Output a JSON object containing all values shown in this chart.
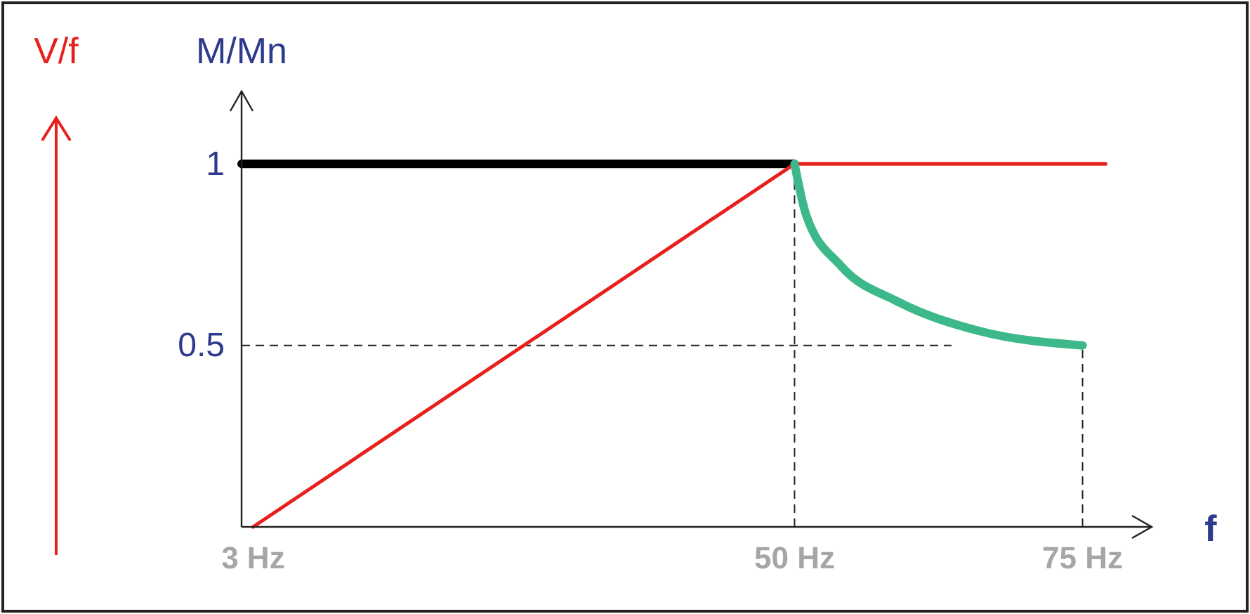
{
  "chart_data": {
    "type": "line",
    "xlabel": "f",
    "ylabel": "M/Mn",
    "annotations": [
      "V/f"
    ],
    "xlim": [
      2,
      81
    ],
    "ylim": [
      0,
      1.2
    ],
    "xticks": [
      {
        "value": 3,
        "label": "3 Hz"
      },
      {
        "value": 50,
        "label": "50 Hz"
      },
      {
        "value": 75,
        "label": "75 Hz"
      }
    ],
    "yticks": [
      0.5,
      1
    ],
    "series": [
      {
        "color": "#000000",
        "x": [
          2,
          50
        ],
        "values": [
          1,
          1
        ]
      },
      {
        "color": "#e8201c",
        "x": [
          3,
          50,
          77
        ],
        "values": [
          0,
          1,
          1
        ]
      },
      {
        "color": "#3cb88a",
        "x": [
          50,
          51,
          54,
          59,
          66,
          75
        ],
        "values": [
          1,
          0.86,
          0.72,
          0.62,
          0.54,
          0.5
        ]
      }
    ],
    "ref_lines": [
      {
        "axis": "x",
        "value": 50,
        "line_style": "dashed"
      },
      {
        "axis": "x",
        "value": 75,
        "line_style": "dashed"
      },
      {
        "axis": "y",
        "value": 0.5,
        "line_style": "dashed"
      }
    ],
    "grid": false
  }
}
